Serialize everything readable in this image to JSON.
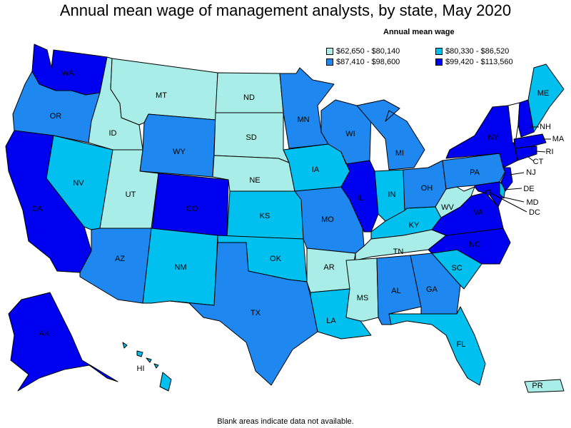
{
  "title": "Annual mean wage of management analysts, by state, May 2020",
  "legend": {
    "title": "Annual mean wage",
    "bins": [
      {
        "label": "$62,650 - $80,140",
        "color": "#a8ede7"
      },
      {
        "label": "$80,330 - $86,520",
        "color": "#00c0f0"
      },
      {
        "label": "$87,410 - $98,600",
        "color": "#1e88f0"
      },
      {
        "label": "$99,420 - $113,560",
        "color": "#0000f0"
      }
    ]
  },
  "footnote": "Blank areas indicate data not available.",
  "states": {
    "WA": 3,
    "OR": 2,
    "CA": 3,
    "NV": 1,
    "ID": 0,
    "MT": 0,
    "WY": 2,
    "UT": 0,
    "CO": 3,
    "AZ": 2,
    "NM": 1,
    "ND": 0,
    "SD": 0,
    "NE": 0,
    "KS": 1,
    "OK": 1,
    "TX": 2,
    "MN": 2,
    "IA": 1,
    "MO": 2,
    "AR": 0,
    "LA": 1,
    "WI": 2,
    "IL": 3,
    "MI": 2,
    "IN": 1,
    "OH": 2,
    "KY": 1,
    "TN": 0,
    "MS": 0,
    "AL": 2,
    "GA": 2,
    "FL": 1,
    "SC": 1,
    "NC": 3,
    "VA": 3,
    "WV": 0,
    "PA": 2,
    "NY": 3,
    "ME": 1,
    "NH": 3,
    "VT": null,
    "MA": 3,
    "RI": 3,
    "CT": 3,
    "NJ": 3,
    "DE": 1,
    "MD": 3,
    "DC": 3,
    "AK": 3,
    "HI": 1,
    "PR": 0
  }
}
